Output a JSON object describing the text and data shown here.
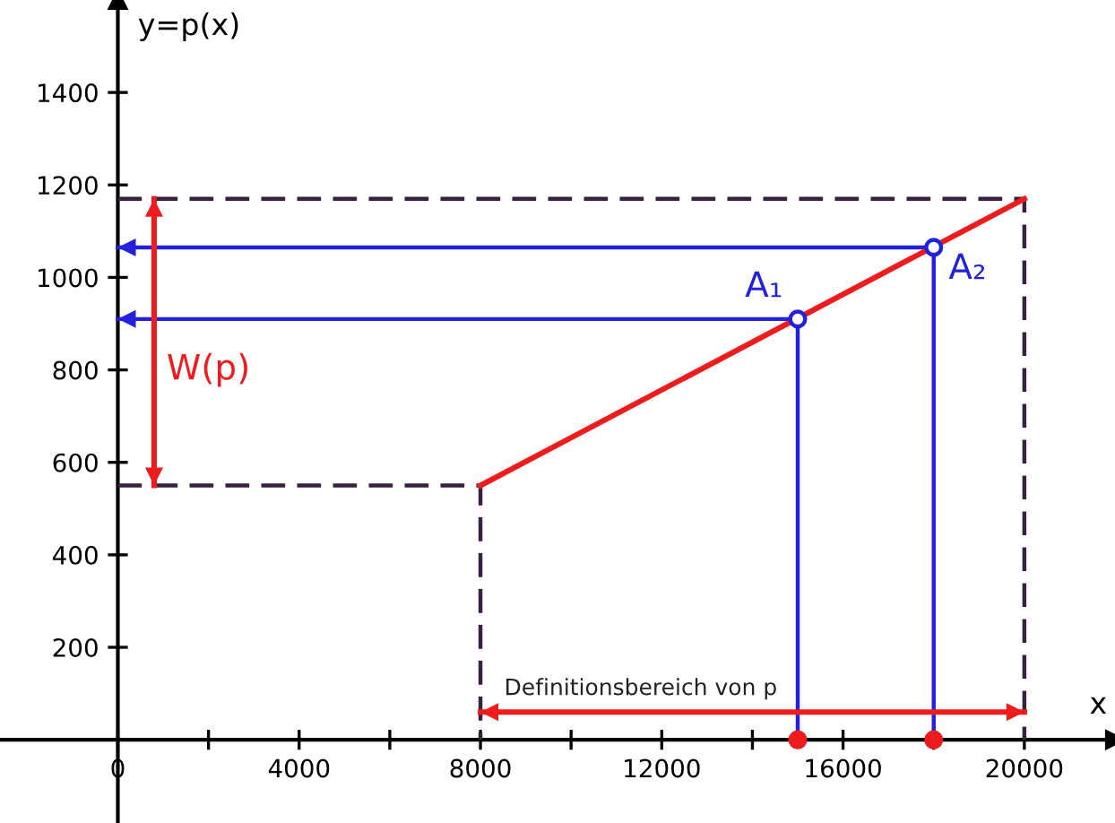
{
  "chart_data": {
    "type": "line",
    "xlabel": "x",
    "ylabel": "y=p(x)",
    "xlim": [
      -2600,
      22000
    ],
    "ylim": [
      -180,
      1600
    ],
    "xticks": [
      0,
      {
        "value": 2000,
        "label": null
      },
      4000,
      {
        "value": 6000,
        "label": null
      },
      8000,
      {
        "value": 10000,
        "label": null
      },
      12000,
      {
        "value": 14000,
        "label": null
      },
      16000,
      {
        "value": 18000,
        "label": null
      },
      20000
    ],
    "yticks": [
      200,
      400,
      600,
      800,
      1000,
      1200,
      1400
    ],
    "grid": false,
    "legend": false,
    "series": [
      {
        "color": "#3a2040",
        "line_style": "dashed",
        "x": [
          0,
          20000,
          20000
        ],
        "values": [
          1170,
          1170,
          0
        ]
      },
      {
        "color": "#3a2040",
        "line_style": "dashed",
        "x": [
          0,
          8000,
          8000
        ],
        "values": [
          550,
          550,
          0
        ]
      },
      {
        "color": "#2222dd",
        "x": [
          15000,
          15000,
          0
        ],
        "values": [
          0,
          910,
          910
        ]
      },
      {
        "color": "#2222dd",
        "x": [
          18000,
          18000,
          0
        ],
        "values": [
          0,
          1065,
          1065
        ]
      },
      {
        "color": "#ee1c1c",
        "x": [
          8000,
          20000
        ],
        "values": [
          550,
          1170
        ]
      },
      {
        "color": "#ee1c1c",
        "x": [
          800,
          800
        ],
        "values": [
          550,
          1170
        ]
      },
      {
        "color": "#ee1c1c",
        "x": [
          8000,
          20000
        ],
        "values": [
          60,
          60
        ]
      },
      {
        "type": "scatter",
        "color": "#2222dd",
        "marker": "circle",
        "x": [
          15000,
          18000
        ],
        "values": [
          910,
          1065
        ]
      },
      {
        "type": "scatter",
        "color": "#ee1c1c",
        "marker": "circle",
        "x": [
          15000,
          18000
        ],
        "values": [
          0,
          0
        ]
      }
    ],
    "annotations": [
      {
        "text": "A₁",
        "x": 15000,
        "y": 910
      },
      {
        "text": "A₂",
        "x": 18000,
        "y": 1065
      },
      {
        "text": "W(p)",
        "x": 800,
        "y": 800
      },
      {
        "text": "Definitionsbereich von p",
        "x": 14000,
        "y": 60
      }
    ]
  }
}
